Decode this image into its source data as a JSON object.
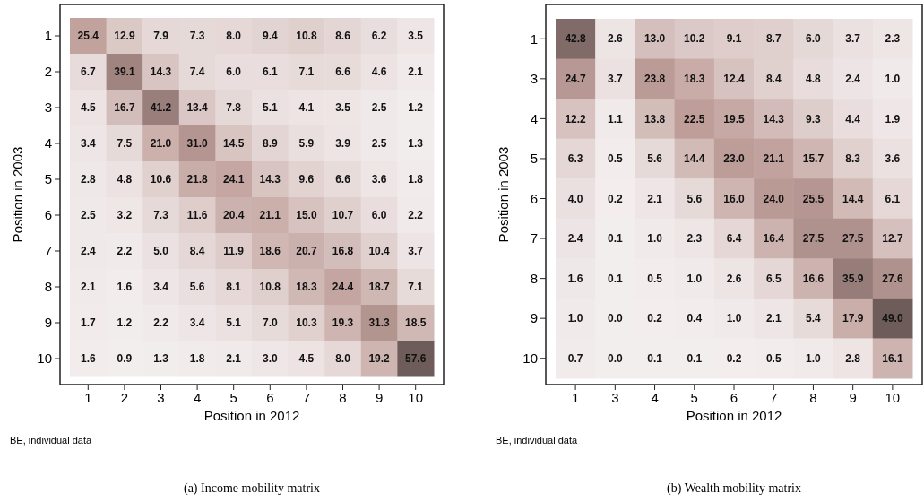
{
  "chart_data": [
    {
      "type": "heatmap",
      "title": "(a) Income mobility matrix",
      "xlabel": "Position in 2012",
      "ylabel": "Position in 2003",
      "annotations": [
        "BE, individual data"
      ],
      "categories": [
        "1",
        "2",
        "3",
        "4",
        "5",
        "6",
        "7",
        "8",
        "9",
        "10"
      ],
      "y_categories": [
        "1",
        "2",
        "3",
        "4",
        "5",
        "6",
        "7",
        "8",
        "9",
        "10"
      ],
      "cells": [
        [
          25.4,
          12.9,
          7.9,
          7.3,
          8.0,
          9.4,
          10.8,
          8.6,
          6.2,
          3.5
        ],
        [
          6.7,
          39.1,
          14.3,
          7.4,
          6.0,
          6.1,
          7.1,
          6.6,
          4.6,
          2.1
        ],
        [
          4.5,
          16.7,
          41.2,
          13.4,
          7.8,
          5.1,
          4.1,
          3.5,
          2.5,
          1.2
        ],
        [
          3.4,
          7.5,
          21.0,
          31.0,
          14.5,
          8.9,
          5.9,
          3.9,
          2.5,
          1.3
        ],
        [
          2.8,
          4.8,
          10.6,
          21.8,
          24.1,
          14.3,
          9.6,
          6.6,
          3.6,
          1.8
        ],
        [
          2.5,
          3.2,
          7.3,
          11.6,
          20.4,
          21.1,
          15.0,
          10.7,
          6.0,
          2.2
        ],
        [
          2.4,
          2.2,
          5.0,
          8.4,
          11.9,
          18.6,
          20.7,
          16.8,
          10.4,
          3.7
        ],
        [
          2.1,
          1.6,
          3.4,
          5.6,
          8.1,
          10.8,
          18.3,
          24.4,
          18.7,
          7.1
        ],
        [
          1.7,
          1.2,
          2.2,
          3.4,
          5.1,
          7.0,
          10.3,
          19.3,
          31.3,
          18.5
        ],
        [
          1.6,
          0.9,
          1.3,
          1.8,
          2.1,
          3.0,
          4.5,
          8.0,
          19.2,
          57.6
        ]
      ],
      "cell_labels": [
        [
          "25.4",
          "12.9",
          "7.9",
          "7.3",
          "8.0",
          "9.4",
          "10.8",
          "8.6",
          "6.2",
          "3.5"
        ],
        [
          "6.7",
          "39.1",
          "14.3",
          "7.4",
          "6.0",
          "6.1",
          "7.1",
          "6.6",
          "4.6",
          "2.1"
        ],
        [
          "4.5",
          "16.7",
          "41.2",
          "13.4",
          "7.8",
          "5.1",
          "4.1",
          "3.5",
          "2.5",
          "1.2"
        ],
        [
          "3.4",
          "7.5",
          "21.0",
          "31.0",
          "14.5",
          "8.9",
          "5.9",
          "3.9",
          "2.5",
          "1.3"
        ],
        [
          "2.8",
          "4.8",
          "10.6",
          "21.8",
          "24.1",
          "14.3",
          "9.6",
          "6.6",
          "3.6",
          "1.8"
        ],
        [
          "2.5",
          "3.2",
          "7.3",
          "11.6",
          "20.4",
          "21.1",
          "15.0",
          "10.7",
          "6.0",
          "2.2"
        ],
        [
          "2.4",
          "2.2",
          "5.0",
          "8.4",
          "11.9",
          "18.6",
          "20.7",
          "16.8",
          "10.4",
          "3.7"
        ],
        [
          "2.1",
          "1.6",
          "3.4",
          "5.6",
          "8.1",
          "10.8",
          "18.3",
          "24.4",
          "18.7",
          "7.1"
        ],
        [
          "1.7",
          "1.2",
          "2.2",
          "3.4",
          "5.1",
          "7.0",
          "10.3",
          "19.3",
          "31.3",
          "18.5"
        ],
        [
          "1.6",
          "0.9",
          "1.3",
          "1.8",
          "2.1",
          "3.0",
          "4.5",
          "8.0",
          "19.2",
          "57.6"
        ]
      ]
    },
    {
      "type": "heatmap",
      "title": "(b) Wealth mobility matrix",
      "xlabel": "Position in 2012",
      "ylabel": "Position in 2003",
      "annotations": [
        "BE, individual data"
      ],
      "categories": [
        "1",
        "3",
        "4",
        "5",
        "6",
        "7",
        "8",
        "9",
        "10"
      ],
      "y_categories": [
        "1",
        "3",
        "4",
        "5",
        "6",
        "7",
        "8",
        "9",
        "10"
      ],
      "cells": [
        [
          42.8,
          2.6,
          13.0,
          10.2,
          9.1,
          8.7,
          6.0,
          3.7,
          2.3
        ],
        [
          24.7,
          3.7,
          23.8,
          18.3,
          12.4,
          8.4,
          4.8,
          2.4,
          1.0
        ],
        [
          12.2,
          1.1,
          13.8,
          22.5,
          19.5,
          14.3,
          9.3,
          4.4,
          1.9
        ],
        [
          6.3,
          0.5,
          5.6,
          14.4,
          23.0,
          21.1,
          15.7,
          8.3,
          3.6
        ],
        [
          4.0,
          0.2,
          2.1,
          5.6,
          16.0,
          24.0,
          25.5,
          14.4,
          6.1
        ],
        [
          2.4,
          0.1,
          1.0,
          2.3,
          6.4,
          16.4,
          27.5,
          27.5,
          12.7
        ],
        [
          1.6,
          0.1,
          0.5,
          1.0,
          2.6,
          6.5,
          16.6,
          35.9,
          27.6
        ],
        [
          1.0,
          0.0,
          0.2,
          0.4,
          1.0,
          2.1,
          5.4,
          17.9,
          49.0
        ],
        [
          0.7,
          0.0,
          0.1,
          0.1,
          0.2,
          0.5,
          1.0,
          2.8,
          16.1
        ]
      ],
      "cell_labels": [
        [
          "42.8",
          "2.6",
          "13.0",
          "10.2",
          "9.1",
          "8.7",
          "6.0",
          "3.7",
          "2.3"
        ],
        [
          "24.7",
          "3.7",
          "23.8",
          "18.3",
          "12.4",
          "8.4",
          "4.8",
          "2.4",
          "1.0"
        ],
        [
          "12.2",
          "1.1",
          "13.8",
          "22.5",
          "19.5",
          "14.3",
          "9.3",
          "4.4",
          "1.9"
        ],
        [
          "6.3",
          "0.5",
          "5.6",
          "14.4",
          "23.0",
          "21.1",
          "15.7",
          "8.3",
          "3.6"
        ],
        [
          "4.0",
          "0.2",
          "2.1",
          "5.6",
          "16.0",
          "24.0",
          "25.5",
          "14.4",
          "6.1"
        ],
        [
          "2.4",
          "0.1",
          "1.0",
          "2.3",
          "6.4",
          "16.4",
          "27.5",
          "27.5",
          "12.7"
        ],
        [
          "1.6",
          "0.1",
          "0.5",
          "1.0",
          "2.6",
          "6.5",
          "16.6",
          "35.9",
          "27.6"
        ],
        [
          "1.0",
          "0.0",
          "0.2",
          "0.4",
          "1.0",
          "2.1",
          "5.4",
          "17.9",
          "49.0"
        ],
        [
          "0.7",
          "0.0",
          "0.1",
          "0.1",
          "0.2",
          "0.5",
          "1.0",
          "2.8",
          "16.1"
        ]
      ]
    }
  ]
}
